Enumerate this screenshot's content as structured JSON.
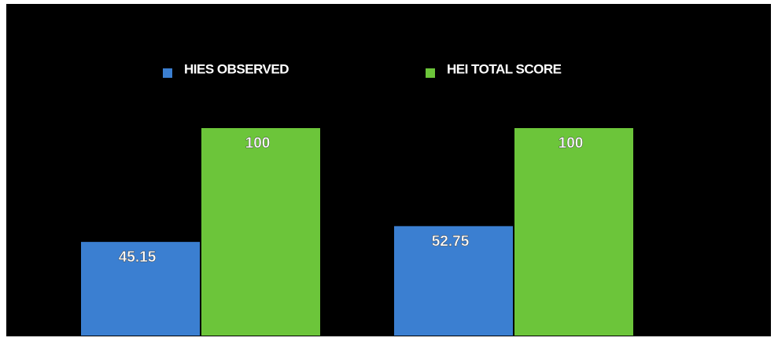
{
  "chart_data": {
    "type": "bar",
    "categories": [
      null,
      null
    ],
    "series": [
      {
        "name": "HIES OBSERVED",
        "color": "#3b7fd1",
        "values": [
          45.15,
          52.75
        ]
      },
      {
        "name": "HEI TOTAL SCORE",
        "color": "#6cc53a",
        "values": [
          100,
          100
        ]
      }
    ],
    "ylim": [
      0,
      100
    ]
  }
}
